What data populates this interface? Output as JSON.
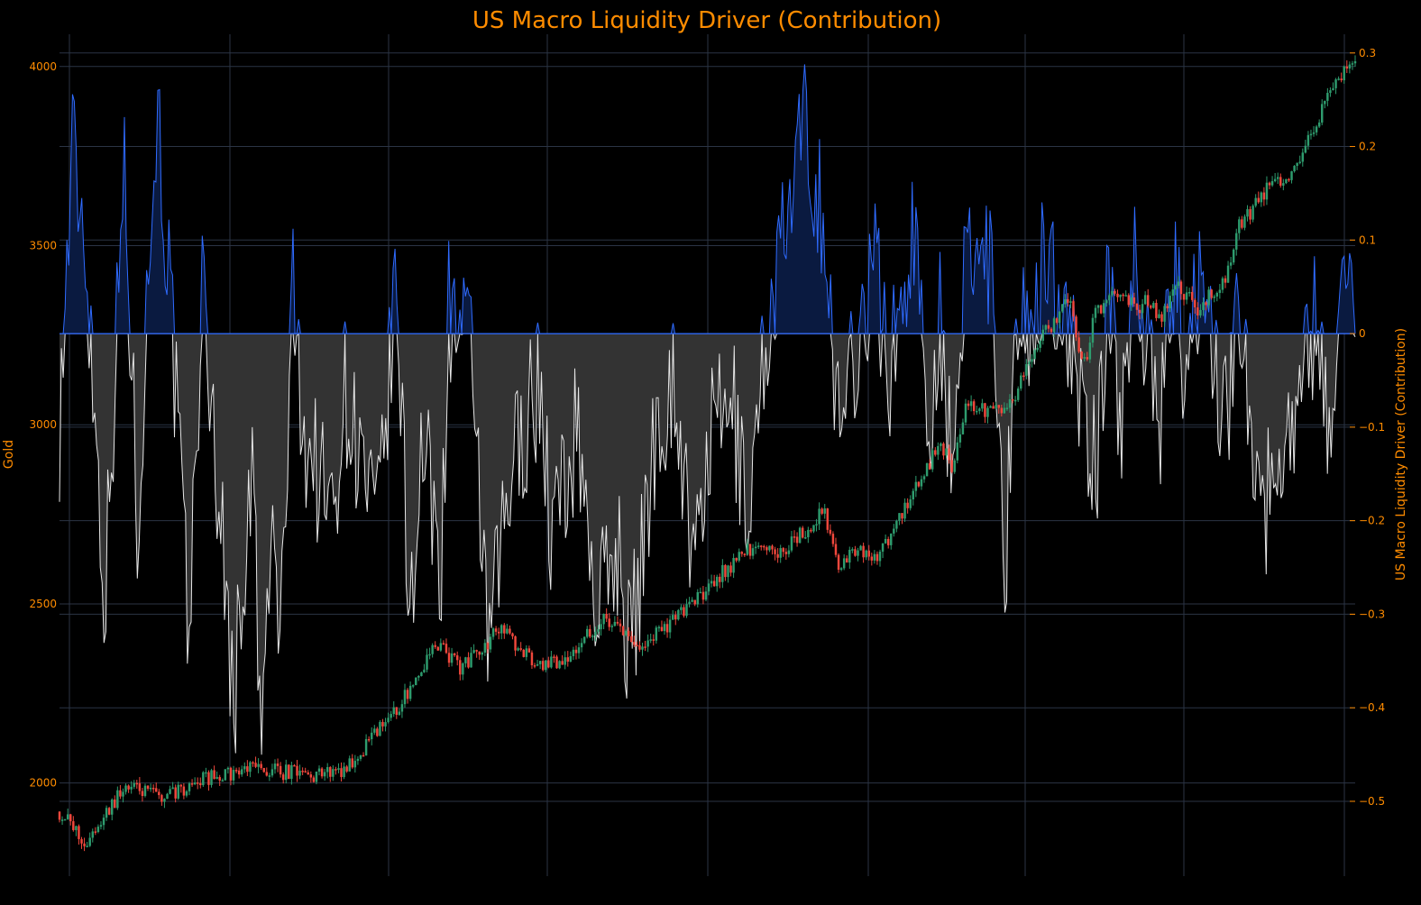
{
  "title": "US Macro Liquidity Driver (Contribution)",
  "colors": {
    "accent": "#ff8c00",
    "background": "#000000",
    "grid": "#2b3445",
    "up": "#2e9c6e",
    "down": "#f0473c",
    "positive_line": "#2f6bff",
    "positive_fill": "#0a1a40",
    "negative_line": "#e6e6e6",
    "negative_fill": "#333333"
  },
  "chart_data": {
    "type": "line",
    "title": "US Macro Liquidity Driver (Contribution)",
    "grid": true,
    "y_left": {
      "label": "Gold",
      "ticks": [
        2000,
        2500,
        3000,
        3500,
        4000
      ],
      "range": [
        1740,
        4090
      ]
    },
    "y_right": {
      "label": "US Macro Liquidity Driver (Contribution)",
      "ticks": [
        0.3,
        0.2,
        0.1,
        0,
        -0.1,
        -0.2,
        -0.3,
        -0.4,
        -0.5
      ],
      "range": [
        -0.58,
        0.32
      ]
    },
    "series": [
      {
        "name": "Gold",
        "kind": "candlestick",
        "axis": "left",
        "t": [
          0,
          0.02,
          0.05,
          0.08,
          0.11,
          0.15,
          0.2,
          0.22,
          0.26,
          0.29,
          0.31,
          0.34,
          0.37,
          0.39,
          0.42,
          0.45,
          0.49,
          0.53,
          0.56,
          0.59,
          0.6,
          0.62,
          0.63,
          0.65,
          0.68,
          0.69,
          0.7,
          0.73,
          0.76,
          0.78,
          0.79,
          0.8,
          0.82,
          0.83,
          0.84,
          0.85,
          0.86,
          0.88,
          0.9,
          0.91,
          0.93,
          0.95,
          0.97,
          0.99,
          1.0
        ],
        "close": [
          1920,
          1830,
          1990,
          1960,
          2010,
          2040,
          2020,
          2040,
          2200,
          2390,
          2320,
          2430,
          2320,
          2350,
          2460,
          2380,
          2510,
          2650,
          2650,
          2760,
          2610,
          2650,
          2620,
          2750,
          2950,
          2880,
          3050,
          3030,
          3250,
          3350,
          3150,
          3320,
          3380,
          3320,
          3350,
          3290,
          3400,
          3320,
          3420,
          3550,
          3650,
          3700,
          3850,
          3980,
          4030
        ]
      },
      {
        "name": "US Macro Liquidity Driver (Contribution)",
        "kind": "area",
        "axis": "right",
        "t": [
          0,
          0.01,
          0.02,
          0.035,
          0.05,
          0.06,
          0.075,
          0.085,
          0.1,
          0.11,
          0.12,
          0.135,
          0.14,
          0.15,
          0.155,
          0.165,
          0.17,
          0.18,
          0.19,
          0.2,
          0.21,
          0.22,
          0.23,
          0.245,
          0.26,
          0.27,
          0.28,
          0.295,
          0.3,
          0.32,
          0.33,
          0.35,
          0.37,
          0.38,
          0.4,
          0.415,
          0.43,
          0.44,
          0.45,
          0.46,
          0.475,
          0.49,
          0.5,
          0.52,
          0.53,
          0.55,
          0.56,
          0.575,
          0.59,
          0.6,
          0.61,
          0.63,
          0.64,
          0.66,
          0.67,
          0.68,
          0.69,
          0.7,
          0.72,
          0.73,
          0.74,
          0.75,
          0.76,
          0.775,
          0.79,
          0.8,
          0.81,
          0.82,
          0.83,
          0.85,
          0.86,
          0.87,
          0.88,
          0.9,
          0.91,
          0.93,
          0.94,
          0.95,
          0.97,
          0.98,
          0.99,
          1.0
        ],
        "values": [
          -0.1,
          0.2,
          0.1,
          -0.28,
          0.18,
          -0.2,
          0.25,
          0.05,
          -0.33,
          0.05,
          -0.12,
          -0.4,
          -0.28,
          -0.15,
          -0.45,
          -0.2,
          -0.35,
          0.04,
          -0.12,
          -0.15,
          -0.2,
          -0.06,
          -0.12,
          -0.22,
          0.05,
          -0.3,
          -0.12,
          -0.25,
          0.03,
          -0.04,
          -0.35,
          -0.14,
          -0.05,
          -0.22,
          -0.1,
          -0.3,
          -0.22,
          -0.34,
          -0.24,
          -0.1,
          -0.05,
          -0.27,
          -0.12,
          -0.08,
          -0.2,
          0.05,
          0.1,
          0.22,
          0.12,
          -0.1,
          -0.04,
          0.08,
          -0.05,
          0.12,
          -0.1,
          0.03,
          -0.2,
          0.11,
          0.08,
          -0.25,
          0.06,
          -0.05,
          0.1,
          0.03,
          -0.09,
          -0.15,
          0.05,
          -0.1,
          0.09,
          -0.1,
          0.08,
          -0.08,
          0.08,
          -0.1,
          0.04,
          -0.2,
          -0.12,
          -0.1,
          0.02,
          -0.1,
          0.05,
          0.04
        ]
      }
    ]
  }
}
